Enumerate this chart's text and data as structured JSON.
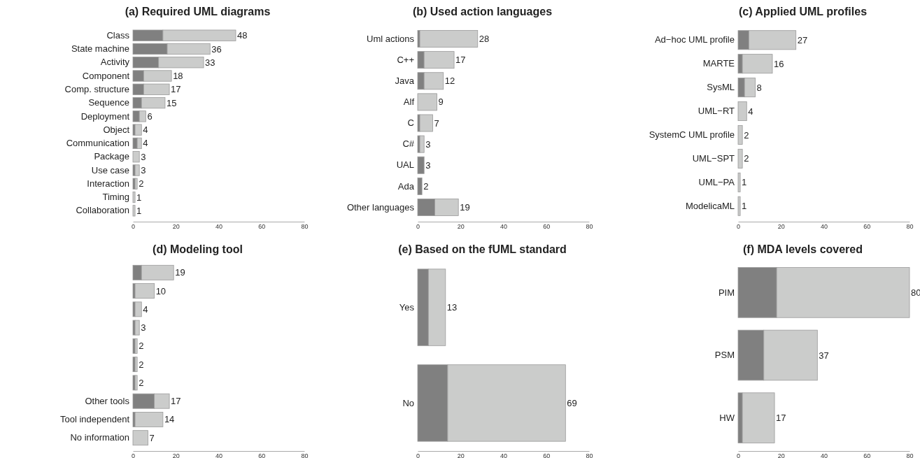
{
  "chart_data": [
    {
      "type": "bar",
      "title": "(a) Required UML diagrams",
      "orientation": "horizontal",
      "stacked": true,
      "categories": [
        "Class",
        "State machine",
        "Activity",
        "Component",
        "Comp. structure",
        "Sequence",
        "Deployment",
        "Object",
        "Communication",
        "Package",
        "Use case",
        "Interaction",
        "Timing",
        "Collaboration"
      ],
      "series": [
        {
          "color": "#808080",
          "values": [
            14,
            16,
            12,
            5,
            5,
            4,
            3,
            1,
            2,
            0,
            1,
            1,
            0,
            0
          ]
        },
        {
          "color": "#cbcccb",
          "values": [
            34,
            20,
            21,
            13,
            12,
            11,
            3,
            3,
            2,
            3,
            2,
            1,
            1,
            1
          ]
        }
      ],
      "totals": [
        "48",
        "36",
        "33",
        "18",
        "17",
        "15",
        "6",
        "4",
        "4",
        "3",
        "3",
        "2",
        "1",
        "1"
      ],
      "xlim": [
        0,
        80
      ],
      "xticks": [
        0,
        20,
        40,
        60,
        80
      ]
    },
    {
      "type": "bar",
      "title": "(b) Used action languages",
      "orientation": "horizontal",
      "stacked": true,
      "categories": [
        "Uml actions",
        "C++",
        "Java",
        "Alf",
        "C",
        "C#",
        "UAL",
        "Ada",
        "Other languages"
      ],
      "series": [
        {
          "color": "#808080",
          "values": [
            1,
            3,
            3,
            0,
            1,
            1,
            3,
            2,
            8
          ]
        },
        {
          "color": "#cbcccb",
          "values": [
            27,
            14,
            9,
            9,
            6,
            2,
            0,
            0,
            11
          ]
        }
      ],
      "totals": [
        "28",
        "17",
        "12",
        "9",
        "7",
        "3",
        "3",
        "2",
        "19"
      ],
      "xlim": [
        0,
        80
      ],
      "xticks": [
        0,
        20,
        40,
        60,
        80
      ]
    },
    {
      "type": "bar",
      "title": "(c) Applied UML profiles",
      "orientation": "horizontal",
      "stacked": true,
      "categories": [
        "Ad−hoc UML profile",
        "MARTE",
        "SysML",
        "UML−RT",
        "SystemC UML profile",
        "UML−SPT",
        "UML−PA",
        "ModelicaML"
      ],
      "series": [
        {
          "color": "#808080",
          "values": [
            5,
            2,
            3,
            0,
            0,
            0,
            0,
            0
          ]
        },
        {
          "color": "#cbcccb",
          "values": [
            22,
            14,
            5,
            4,
            2,
            2,
            1,
            1
          ]
        }
      ],
      "totals": [
        "27",
        "16",
        "8",
        "4",
        "2",
        "2",
        "1",
        "1"
      ],
      "xlim": [
        0,
        80
      ],
      "xticks": [
        0,
        20,
        40,
        60,
        80
      ]
    },
    {
      "type": "bar",
      "title": "(d) Modeling tool",
      "orientation": "horizontal",
      "stacked": true,
      "categories": [
        null,
        null,
        null,
        null,
        null,
        null,
        null,
        "Other tools",
        "Tool independent",
        "No information"
      ],
      "series": [
        {
          "color": "#808080",
          "values": [
            4,
            1,
            1,
            1,
            1,
            1,
            1,
            10,
            1,
            0
          ]
        },
        {
          "color": "#cbcccb",
          "values": [
            15,
            9,
            3,
            2,
            1,
            1,
            1,
            7,
            13,
            7
          ]
        }
      ],
      "totals": [
        "19",
        "10",
        "4",
        "3",
        "2",
        "2",
        "2",
        "17",
        "14",
        "7"
      ],
      "xlim": [
        0,
        80
      ],
      "xticks": [
        0,
        20,
        40,
        60,
        80
      ]
    },
    {
      "type": "bar",
      "title": "(e) Based on the fUML standard",
      "orientation": "horizontal",
      "stacked": true,
      "categories": [
        "Yes",
        "No"
      ],
      "series": [
        {
          "color": "#808080",
          "values": [
            5,
            14
          ]
        },
        {
          "color": "#cbcccb",
          "values": [
            8,
            55
          ]
        }
      ],
      "totals": [
        "13",
        "69"
      ],
      "xlim": [
        0,
        80
      ],
      "xticks": [
        0,
        20,
        40,
        60,
        80
      ]
    },
    {
      "type": "bar",
      "title": "(f) MDA levels covered",
      "orientation": "horizontal",
      "stacked": true,
      "categories": [
        "PIM",
        "PSM",
        "HW"
      ],
      "series": [
        {
          "color": "#808080",
          "values": [
            18,
            12,
            2
          ]
        },
        {
          "color": "#cbcccb",
          "values": [
            62,
            25,
            15
          ]
        }
      ],
      "totals": [
        "80",
        "37",
        "17"
      ],
      "xlim": [
        0,
        80
      ],
      "xticks": [
        0,
        20,
        40,
        60,
        80
      ]
    }
  ]
}
